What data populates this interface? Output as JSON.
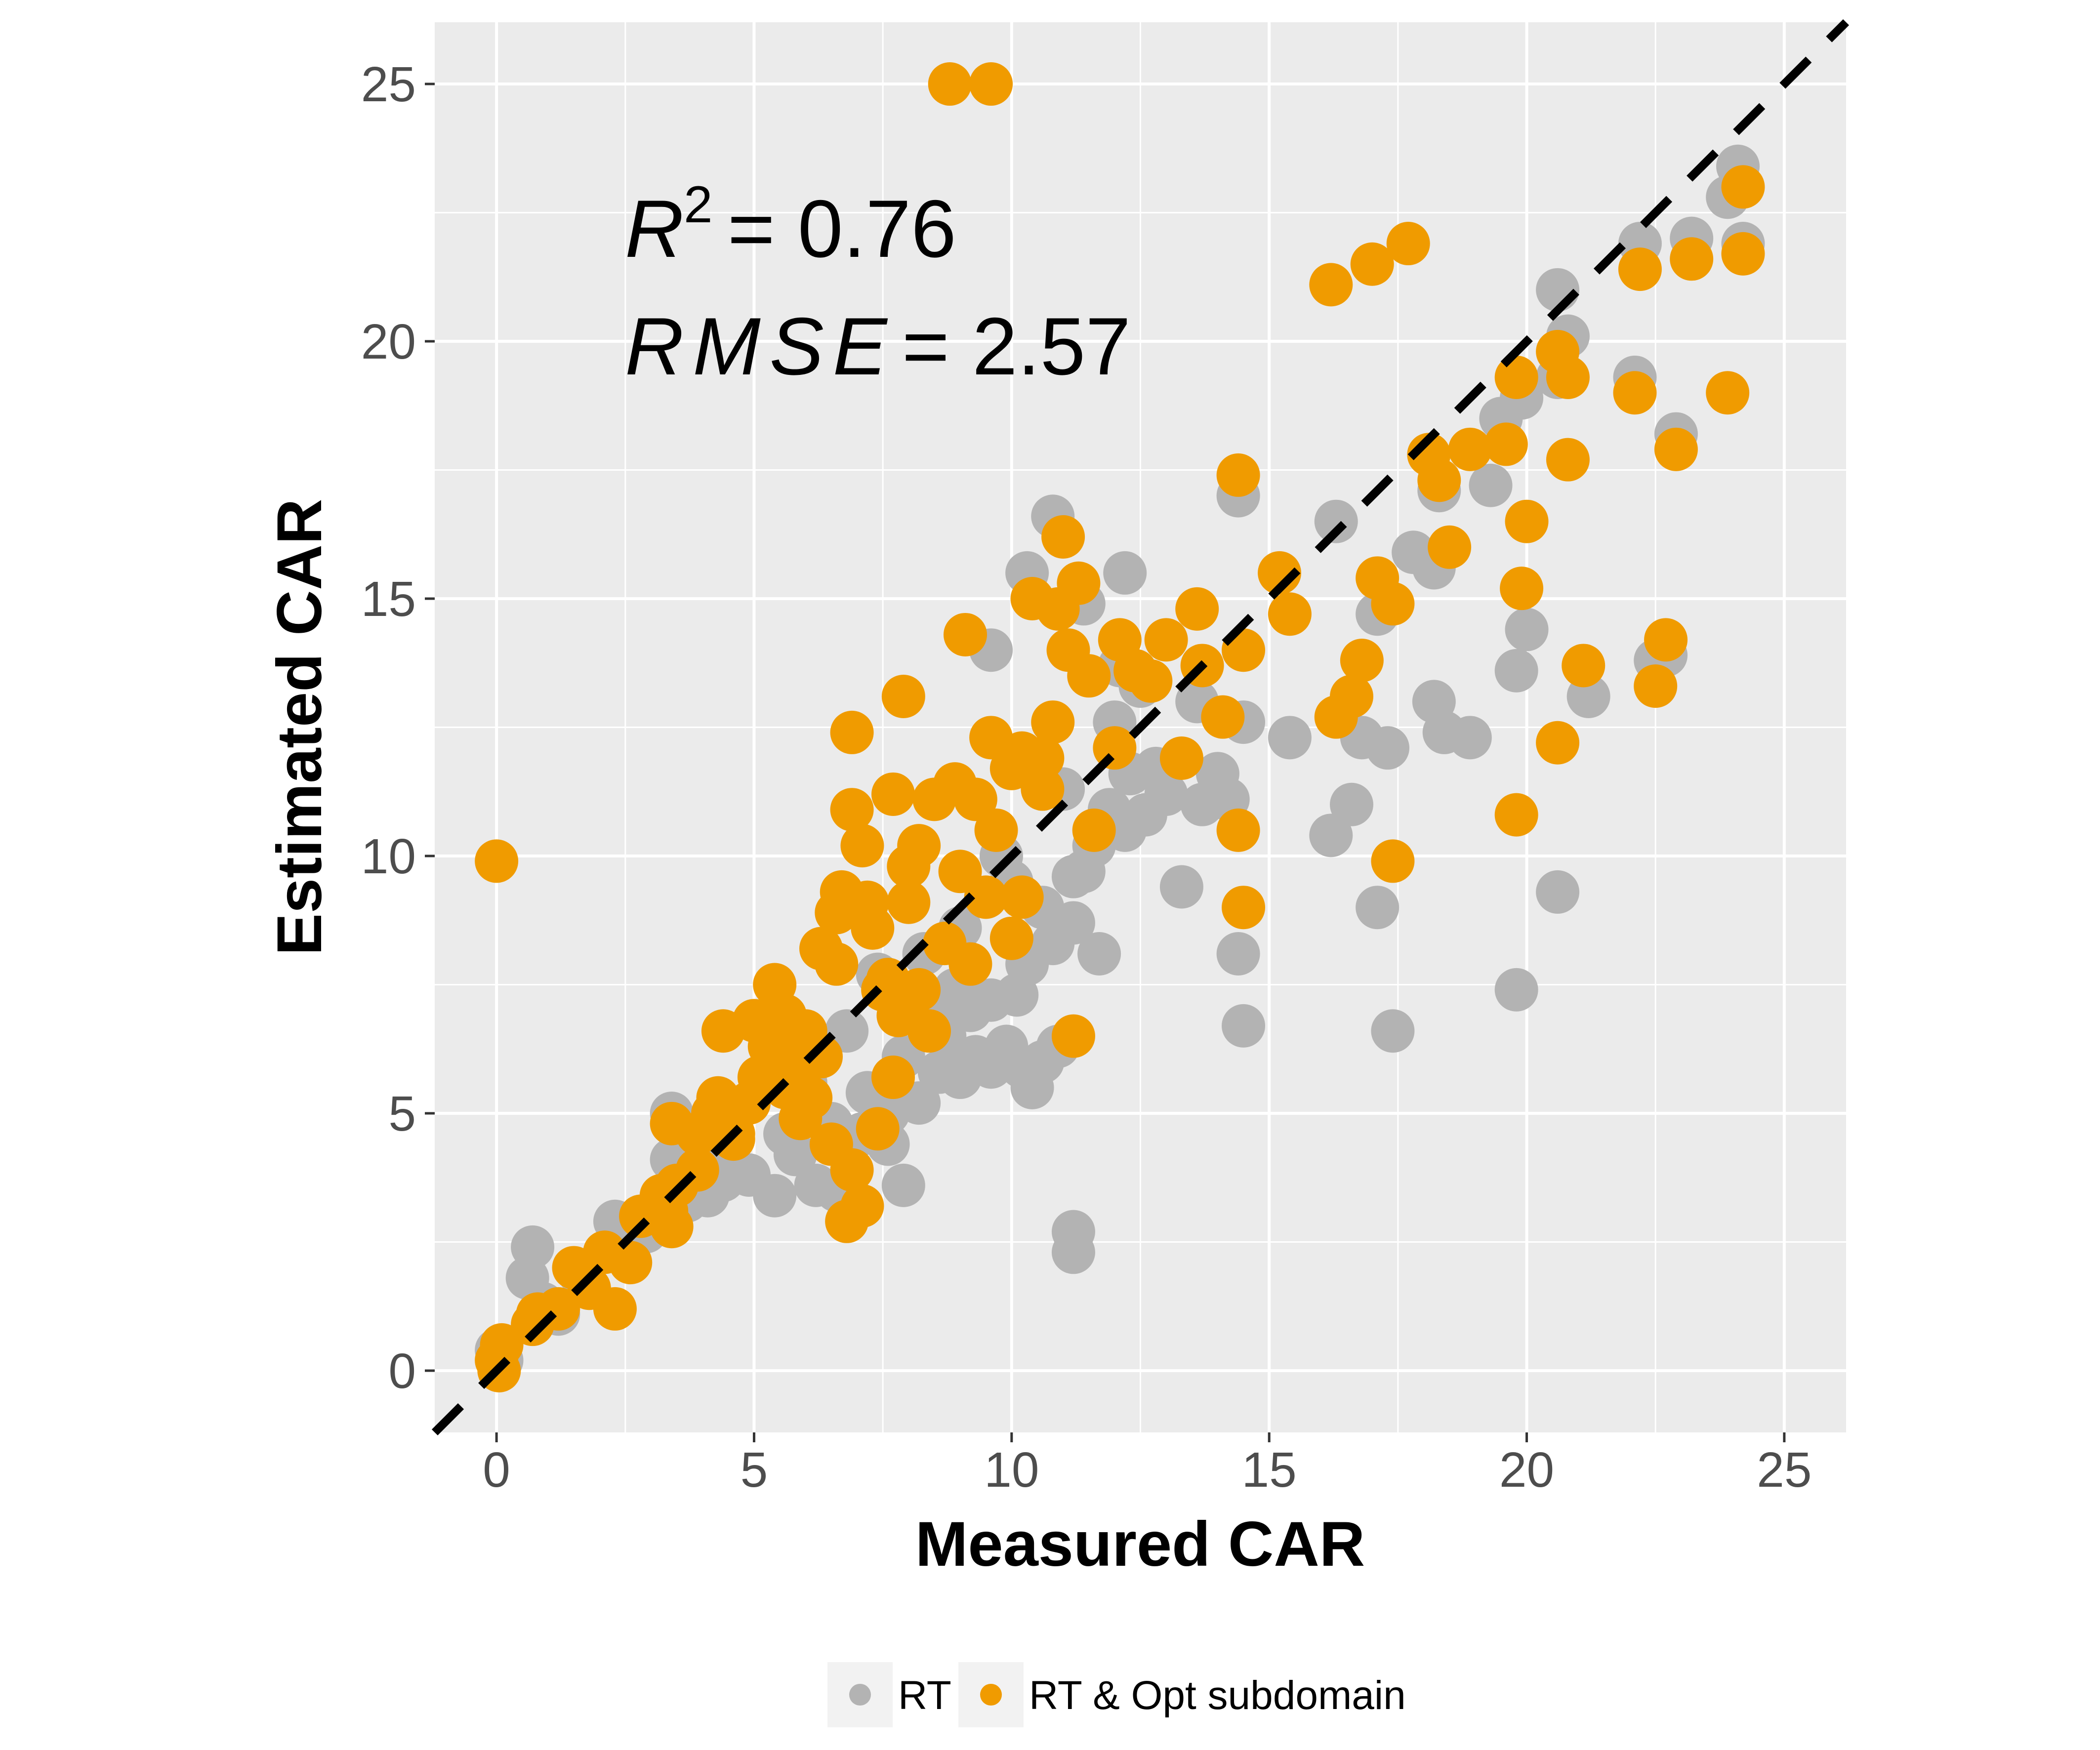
{
  "chart_data": {
    "type": "scatter",
    "xlabel": "Measured CAR",
    "ylabel": "Estimated CAR",
    "xlim": [
      -1.2,
      26.2
    ],
    "ylim": [
      -1.2,
      26.2
    ],
    "x_ticks": [
      0,
      5,
      10,
      15,
      20,
      25
    ],
    "y_ticks": [
      0,
      5,
      10,
      15,
      20,
      25
    ],
    "x_tick_labels": [
      "0",
      "5",
      "10",
      "15",
      "20",
      "25"
    ],
    "y_tick_labels": [
      "0",
      "5",
      "10",
      "15",
      "20",
      "25"
    ],
    "grid": true,
    "reference_line": {
      "slope": 1,
      "intercept": 0,
      "style": "dashed",
      "color": "#000000"
    },
    "annotations": {
      "r2_symbol": "R",
      "r2_exponent": "2",
      "r2_value": "= 0.76",
      "rmse_symbol": "RMSE",
      "rmse_value": "= 2.57"
    },
    "legend_position": "bottom",
    "series": [
      {
        "name": "RT",
        "color": "#b3b3b3",
        "points": [
          [
            0,
            0.4
          ],
          [
            0.1,
            0.2
          ],
          [
            0.7,
            2.4
          ],
          [
            0.6,
            1.8
          ],
          [
            0.9,
            1.3
          ],
          [
            1.6,
            1.9
          ],
          [
            2.3,
            2.9
          ],
          [
            2.9,
            2.7
          ],
          [
            3.4,
            4.1
          ],
          [
            3.4,
            5.0
          ],
          [
            4.1,
            3.4
          ],
          [
            4.4,
            3.7
          ],
          [
            4.9,
            3.8
          ],
          [
            5.4,
            3.4
          ],
          [
            5.8,
            4.2
          ],
          [
            6.2,
            3.6
          ],
          [
            6.5,
            4.8
          ],
          [
            7.1,
            4.6
          ],
          [
            7.6,
            4.4
          ],
          [
            7.9,
            3.6
          ],
          [
            8.2,
            5.2
          ],
          [
            8.6,
            5.8
          ],
          [
            9.0,
            5.7
          ],
          [
            9.3,
            6.1
          ],
          [
            9.6,
            5.9
          ],
          [
            9.9,
            6.3
          ],
          [
            10.2,
            5.9
          ],
          [
            10.6,
            6.0
          ],
          [
            10.4,
            5.5
          ],
          [
            10.9,
            6.3
          ],
          [
            8.7,
            6.5
          ],
          [
            9.2,
            7.0
          ],
          [
            7.9,
            6.1
          ],
          [
            8.4,
            6.9
          ],
          [
            8.9,
            7.4
          ],
          [
            9.6,
            7.2
          ],
          [
            10.1,
            7.3
          ],
          [
            10.3,
            7.9
          ],
          [
            10.8,
            8.3
          ],
          [
            11.2,
            8.7
          ],
          [
            11.7,
            8.1
          ],
          [
            11.2,
            9.6
          ],
          [
            11.6,
            10.2
          ],
          [
            11.9,
            10.9
          ],
          [
            12.2,
            10.5
          ],
          [
            12.6,
            10.8
          ],
          [
            12.8,
            11.7
          ],
          [
            13.0,
            11.2
          ],
          [
            12.3,
            11.6
          ],
          [
            13.7,
            11.0
          ],
          [
            14.0,
            11.6
          ],
          [
            14.2,
            11.1
          ],
          [
            13.3,
            9.4
          ],
          [
            14.4,
            8.1
          ],
          [
            14.5,
            6.7
          ],
          [
            11.2,
            2.3
          ],
          [
            11.2,
            2.7
          ],
          [
            9.6,
            14.0
          ],
          [
            10.3,
            15.5
          ],
          [
            10.8,
            16.6
          ],
          [
            12.2,
            15.5
          ],
          [
            11.4,
            14.9
          ],
          [
            12.1,
            13.7
          ],
          [
            13.6,
            13.0
          ],
          [
            14.5,
            12.6
          ],
          [
            15.4,
            12.3
          ],
          [
            14.4,
            17.0
          ],
          [
            16.3,
            16.5
          ],
          [
            16.2,
            10.4
          ],
          [
            16.6,
            11.0
          ],
          [
            16.8,
            12.3
          ],
          [
            17.1,
            9.0
          ],
          [
            17.4,
            6.6
          ],
          [
            17.3,
            12.1
          ],
          [
            17.1,
            14.7
          ],
          [
            17.8,
            15.9
          ],
          [
            18.2,
            15.6
          ],
          [
            18.3,
            17.1
          ],
          [
            18.2,
            13.0
          ],
          [
            18.4,
            12.4
          ],
          [
            18.9,
            12.3
          ],
          [
            19.3,
            17.2
          ],
          [
            19.5,
            18.5
          ],
          [
            19.9,
            18.9
          ],
          [
            19.8,
            13.6
          ],
          [
            20.0,
            14.4
          ],
          [
            19.8,
            7.4
          ],
          [
            20.6,
            9.3
          ],
          [
            20.6,
            21.0
          ],
          [
            20.8,
            20.1
          ],
          [
            20.6,
            19.3
          ],
          [
            21.2,
            13.1
          ],
          [
            22.1,
            19.3
          ],
          [
            22.2,
            21.9
          ],
          [
            22.9,
            18.2
          ],
          [
            23.2,
            22.0
          ],
          [
            22.5,
            13.8
          ],
          [
            24.1,
            23.4
          ],
          [
            23.9,
            22.8
          ],
          [
            24.2,
            21.9
          ],
          [
            22.7,
            13.9
          ],
          [
            12.0,
            12.6
          ],
          [
            12.5,
            13.3
          ],
          [
            11.0,
            11.3
          ],
          [
            9.8,
            10.0
          ],
          [
            10.0,
            9.5
          ],
          [
            10.6,
            9.0
          ],
          [
            11.4,
            9.7
          ],
          [
            8.3,
            8.1
          ],
          [
            9.0,
            8.6
          ],
          [
            7.4,
            7.7
          ],
          [
            6.8,
            6.6
          ],
          [
            7.2,
            5.4
          ],
          [
            7.6,
            5.0
          ],
          [
            6.0,
            5.6
          ],
          [
            5.6,
            4.6
          ],
          [
            6.6,
            3.5
          ],
          [
            4.0,
            4.0
          ],
          [
            3.7,
            3.3
          ],
          [
            1.2,
            1.1
          ]
        ]
      },
      {
        "name": "RT & Opt subdomain",
        "color": "#f09b00",
        "points": [
          [
            0,
            9.9
          ],
          [
            0,
            0.2
          ],
          [
            0.1,
            0.5
          ],
          [
            0.05,
            0
          ],
          [
            0.7,
            0.9
          ],
          [
            0.8,
            1.1
          ],
          [
            1.2,
            1.2
          ],
          [
            1.5,
            2.0
          ],
          [
            1.8,
            1.6
          ],
          [
            2.1,
            2.3
          ],
          [
            2.3,
            1.2
          ],
          [
            2.6,
            2.1
          ],
          [
            2.8,
            3.0
          ],
          [
            3.2,
            3.4
          ],
          [
            3.4,
            2.8
          ],
          [
            3.5,
            3.6
          ],
          [
            3.4,
            4.8
          ],
          [
            3.9,
            4.6
          ],
          [
            4.3,
            5.3
          ],
          [
            4.4,
            6.6
          ],
          [
            4.6,
            4.5
          ],
          [
            4.9,
            5.2
          ],
          [
            5.0,
            6.8
          ],
          [
            5.3,
            6.3
          ],
          [
            5.4,
            7.5
          ],
          [
            5.6,
            6.9
          ],
          [
            5.8,
            5.9
          ],
          [
            6.0,
            6.6
          ],
          [
            6.1,
            5.3
          ],
          [
            6.3,
            8.2
          ],
          [
            6.6,
            7.9
          ],
          [
            6.7,
            9.3
          ],
          [
            6.9,
            10.9
          ],
          [
            6.9,
            12.4
          ],
          [
            7.1,
            10.2
          ],
          [
            7.2,
            9.1
          ],
          [
            7.3,
            8.6
          ],
          [
            7.5,
            7.4
          ],
          [
            7.7,
            11.2
          ],
          [
            7.9,
            13.1
          ],
          [
            8.0,
            9.8
          ],
          [
            8.2,
            10.2
          ],
          [
            8.5,
            11.1
          ],
          [
            8.9,
            11.4
          ],
          [
            9.1,
            14.3
          ],
          [
            9.3,
            11.1
          ],
          [
            9.5,
            9.2
          ],
          [
            9.6,
            12.3
          ],
          [
            10.0,
            11.7
          ],
          [
            10.2,
            12.0
          ],
          [
            10.4,
            15.0
          ],
          [
            10.6,
            11.9
          ],
          [
            10.8,
            12.6
          ],
          [
            10.9,
            14.8
          ],
          [
            11.0,
            16.2
          ],
          [
            11.1,
            14.0
          ],
          [
            11.3,
            15.3
          ],
          [
            11.5,
            13.5
          ],
          [
            11.6,
            10.5
          ],
          [
            12.0,
            12.1
          ],
          [
            12.1,
            14.2
          ],
          [
            12.4,
            13.6
          ],
          [
            12.7,
            13.4
          ],
          [
            13.0,
            14.2
          ],
          [
            13.3,
            11.9
          ],
          [
            13.6,
            14.8
          ],
          [
            13.7,
            13.7
          ],
          [
            14.1,
            12.7
          ],
          [
            14.4,
            10.5
          ],
          [
            14.5,
            9.0
          ],
          [
            14.5,
            14.0
          ],
          [
            14.4,
            17.4
          ],
          [
            15.2,
            15.5
          ],
          [
            15.4,
            14.7
          ],
          [
            16.2,
            21.1
          ],
          [
            16.3,
            12.7
          ],
          [
            16.6,
            13.1
          ],
          [
            16.8,
            13.8
          ],
          [
            17.0,
            21.5
          ],
          [
            17.1,
            15.4
          ],
          [
            17.4,
            14.9
          ],
          [
            17.4,
            9.9
          ],
          [
            17.7,
            21.9
          ],
          [
            18.1,
            17.8
          ],
          [
            18.3,
            17.3
          ],
          [
            18.5,
            16.0
          ],
          [
            18.9,
            17.9
          ],
          [
            19.6,
            18.0
          ],
          [
            19.8,
            19.3
          ],
          [
            19.9,
            15.2
          ],
          [
            19.8,
            10.8
          ],
          [
            20.0,
            16.5
          ],
          [
            20.6,
            12.2
          ],
          [
            20.6,
            19.8
          ],
          [
            20.8,
            19.3
          ],
          [
            20.8,
            17.7
          ],
          [
            21.1,
            13.7
          ],
          [
            22.1,
            19.0
          ],
          [
            22.2,
            21.4
          ],
          [
            22.5,
            13.3
          ],
          [
            22.7,
            14.2
          ],
          [
            22.9,
            17.9
          ],
          [
            23.2,
            21.6
          ],
          [
            23.9,
            19.0
          ],
          [
            24.2,
            21.7
          ],
          [
            24.2,
            23.0
          ],
          [
            8.8,
            25.0
          ],
          [
            9.6,
            25.0
          ],
          [
            10.0,
            8.4
          ],
          [
            10.2,
            9.2
          ],
          [
            9.7,
            10.5
          ],
          [
            9.0,
            9.7
          ],
          [
            8.7,
            8.3
          ],
          [
            8.2,
            7.4
          ],
          [
            7.8,
            6.9
          ],
          [
            7.7,
            5.7
          ],
          [
            7.4,
            4.7
          ],
          [
            6.9,
            3.9
          ],
          [
            7.1,
            3.2
          ],
          [
            6.8,
            2.9
          ],
          [
            6.5,
            4.4
          ],
          [
            6.3,
            6.1
          ],
          [
            5.9,
            4.9
          ],
          [
            5.6,
            5.5
          ],
          [
            5.1,
            5.7
          ],
          [
            4.6,
            4.6
          ],
          [
            4.2,
            5.0
          ],
          [
            3.9,
            3.9
          ],
          [
            3.3,
            3.1
          ],
          [
            11.2,
            6.5
          ],
          [
            8.4,
            6.6
          ],
          [
            7.6,
            7.6
          ],
          [
            6.6,
            8.9
          ],
          [
            8.0,
            9.1
          ],
          [
            9.2,
            7.9
          ],
          [
            10.6,
            11.3
          ]
        ]
      }
    ]
  }
}
